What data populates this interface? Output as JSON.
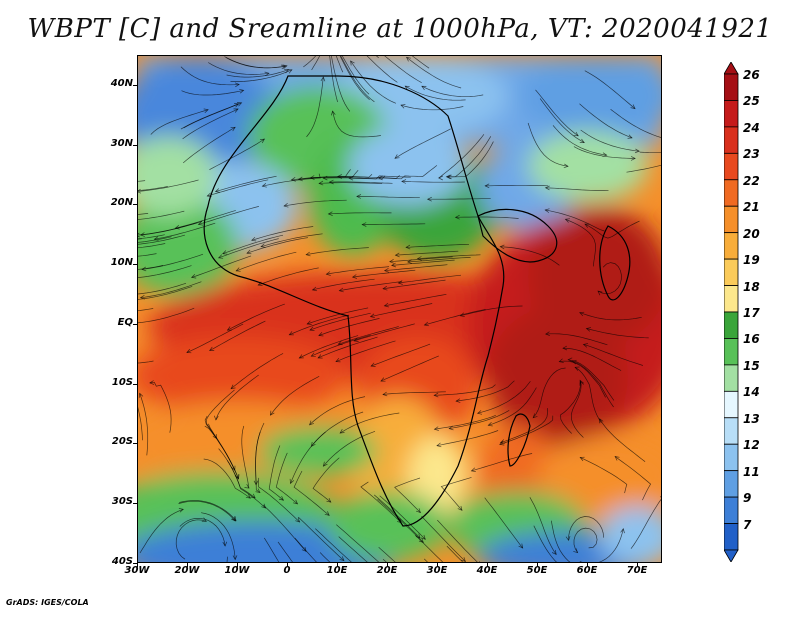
{
  "title": "WBPT [C] and Sreamline at 1000hPa, VT: 2020041921",
  "credit": "GrADS: IGES/COLA",
  "map": {
    "lat_labels": [
      "40N",
      "30N",
      "20N",
      "10N",
      "EQ",
      "10S",
      "20S",
      "30S",
      "40S"
    ],
    "lon_labels": [
      "30W",
      "20W",
      "10W",
      "0",
      "10E",
      "20E",
      "30E",
      "40E",
      "50E",
      "60E",
      "70E"
    ],
    "lat_range": [
      -40,
      45
    ],
    "lon_range": [
      -30,
      75
    ]
  },
  "colorbar": {
    "labels": [
      "26",
      "25",
      "24",
      "23",
      "22",
      "21",
      "20",
      "19",
      "18",
      "17",
      "16",
      "15",
      "14",
      "13",
      "12",
      "11",
      "9",
      "7"
    ],
    "colors": [
      "#a50f15",
      "#c51b1b",
      "#d9301d",
      "#e8491f",
      "#f06a22",
      "#f58f2a",
      "#f8ad3a",
      "#fbcb5a",
      "#fce78c",
      "#3aa53a",
      "#58c158",
      "#a3e0a3",
      "#e6f7ff",
      "#b8def7",
      "#8cc2ef",
      "#5f9fe3",
      "#3d7fd7",
      "#2160c8"
    ]
  },
  "legend_colors": {
    "cold": "#2f6fd6",
    "cool": "#8cc2ef",
    "mild": "#58c158",
    "warm": "#f58f2a",
    "hot": "#c51b1b",
    "ocean_hot": "#b01a12"
  }
}
